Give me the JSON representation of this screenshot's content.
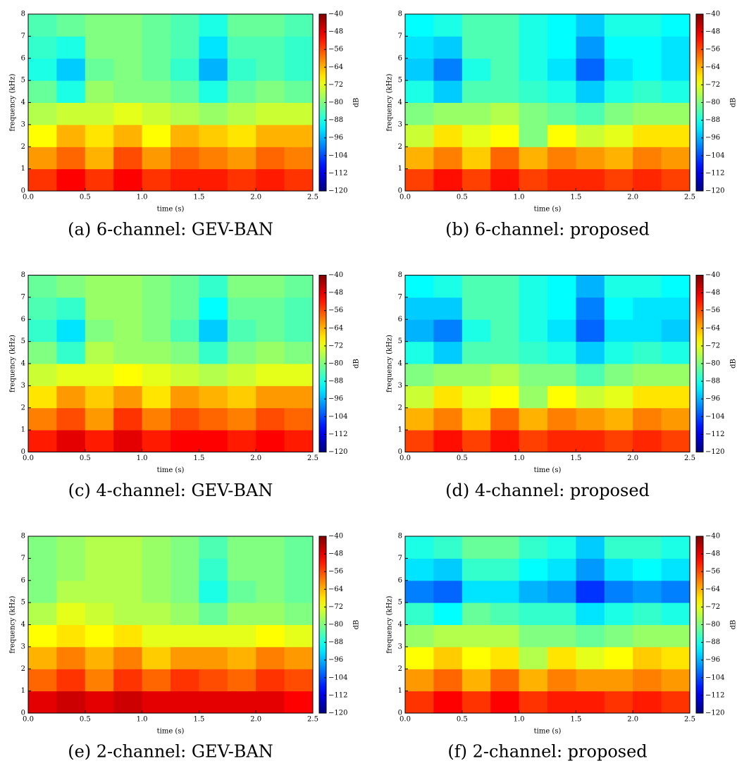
{
  "chart_data": [
    {
      "type": "heatmap",
      "title": "(a) 6-channel: GEV-BAN",
      "xlabel": "time (s)",
      "ylabel": "frequency (kHz)",
      "colorbar_label": "dB",
      "xlim": [
        0,
        2.5
      ],
      "ylim": [
        0,
        8
      ],
      "clim": [
        -120,
        -40
      ],
      "xticks": [
        {
          "value": 0,
          "label": "0.0"
        },
        {
          "value": 0.5,
          "label": "0.5"
        },
        {
          "value": 1,
          "label": "1.0"
        },
        {
          "value": 1.5,
          "label": "1.5"
        },
        {
          "value": 2,
          "label": "2.0"
        },
        {
          "value": 2.5,
          "label": "2.5"
        }
      ],
      "yticks": [
        0,
        1,
        2,
        3,
        4,
        5,
        6,
        7,
        8
      ],
      "cticks": [
        {
          "value": -40,
          "label": "−40"
        },
        {
          "value": -48,
          "label": "−48"
        },
        {
          "value": -56,
          "label": "−56"
        },
        {
          "value": -64,
          "label": "−64"
        },
        {
          "value": -72,
          "label": "−72"
        },
        {
          "value": -80,
          "label": "−80"
        },
        {
          "value": -88,
          "label": "−88"
        },
        {
          "value": -96,
          "label": "−96"
        },
        {
          "value": -104,
          "label": "−104"
        },
        {
          "value": -112,
          "label": "−112"
        },
        {
          "value": -120,
          "label": "−120"
        }
      ],
      "z": [
        [
          -54,
          -50,
          -54,
          -50,
          -54,
          -52,
          -52,
          -54,
          -52,
          -54
        ],
        [
          -62,
          -58,
          -64,
          -56,
          -62,
          -58,
          -60,
          -62,
          -58,
          -60
        ],
        [
          -70,
          -64,
          -68,
          -64,
          -70,
          -64,
          -66,
          -68,
          -64,
          -64
        ],
        [
          -76,
          -74,
          -74,
          -72,
          -74,
          -76,
          -78,
          -76,
          -74,
          -74
        ],
        [
          -82,
          -88,
          -78,
          -80,
          -80,
          -82,
          -88,
          -82,
          -80,
          -82
        ],
        [
          -88,
          -94,
          -82,
          -80,
          -82,
          -86,
          -96,
          -86,
          -84,
          -86
        ],
        [
          -86,
          -88,
          -80,
          -80,
          -82,
          -84,
          -92,
          -84,
          -84,
          -86
        ],
        [
          -84,
          -82,
          -80,
          -80,
          -82,
          -84,
          -88,
          -82,
          -82,
          -84
        ]
      ]
    },
    {
      "type": "heatmap",
      "title": "(b) 6-channel: proposed",
      "xlabel": "time (s)",
      "ylabel": "frequency (kHz)",
      "colorbar_label": "dB",
      "xlim": [
        0,
        2.5
      ],
      "ylim": [
        0,
        8
      ],
      "clim": [
        -120,
        -40
      ],
      "xticks": [
        {
          "value": 0,
          "label": "0.0"
        },
        {
          "value": 0.5,
          "label": "0.5"
        },
        {
          "value": 1,
          "label": "1.0"
        },
        {
          "value": 1.5,
          "label": "1.5"
        },
        {
          "value": 2,
          "label": "2.0"
        },
        {
          "value": 2.5,
          "label": "2.5"
        }
      ],
      "yticks": [
        0,
        1,
        2,
        3,
        4,
        5,
        6,
        7,
        8
      ],
      "cticks": [
        {
          "value": -40,
          "label": "−40"
        },
        {
          "value": -48,
          "label": "−48"
        },
        {
          "value": -56,
          "label": "−56"
        },
        {
          "value": -64,
          "label": "−64"
        },
        {
          "value": -72,
          "label": "−72"
        },
        {
          "value": -80,
          "label": "−80"
        },
        {
          "value": -88,
          "label": "−88"
        },
        {
          "value": -96,
          "label": "−96"
        },
        {
          "value": -104,
          "label": "−104"
        },
        {
          "value": -112,
          "label": "−112"
        },
        {
          "value": -120,
          "label": "−120"
        }
      ],
      "z": [
        [
          -55,
          -51,
          -55,
          -51,
          -55,
          -53,
          -53,
          -55,
          -53,
          -55
        ],
        [
          -64,
          -60,
          -66,
          -58,
          -64,
          -60,
          -62,
          -64,
          -60,
          -62
        ],
        [
          -74,
          -68,
          -72,
          -70,
          -80,
          -70,
          -74,
          -72,
          -68,
          -68
        ],
        [
          -80,
          -78,
          -78,
          -76,
          -80,
          -82,
          -84,
          -80,
          -78,
          -78
        ],
        [
          -88,
          -94,
          -84,
          -84,
          -86,
          -88,
          -94,
          -88,
          -86,
          -88
        ],
        [
          -94,
          -100,
          -88,
          -84,
          -88,
          -92,
          -102,
          -92,
          -90,
          -92
        ],
        [
          -92,
          -94,
          -84,
          -84,
          -88,
          -90,
          -98,
          -90,
          -90,
          -92
        ],
        [
          -90,
          -88,
          -84,
          -84,
          -88,
          -90,
          -94,
          -88,
          -88,
          -90
        ]
      ]
    },
    {
      "type": "heatmap",
      "title": "(c) 4-channel: GEV-BAN",
      "xlabel": "time (s)",
      "ylabel": "frequency (kHz)",
      "colorbar_label": "dB",
      "xlim": [
        0,
        2.5
      ],
      "ylim": [
        0,
        8
      ],
      "clim": [
        -120,
        -40
      ],
      "xticks": [
        {
          "value": 0,
          "label": "0.0"
        },
        {
          "value": 0.5,
          "label": "0.5"
        },
        {
          "value": 1,
          "label": "1.0"
        },
        {
          "value": 1.5,
          "label": "1.5"
        },
        {
          "value": 2,
          "label": "2.0"
        },
        {
          "value": 2.5,
          "label": "2.5"
        }
      ],
      "yticks": [
        0,
        1,
        2,
        3,
        4,
        5,
        6,
        7,
        8
      ],
      "cticks": [
        {
          "value": -40,
          "label": "−40"
        },
        {
          "value": -48,
          "label": "−48"
        },
        {
          "value": -56,
          "label": "−56"
        },
        {
          "value": -64,
          "label": "−64"
        },
        {
          "value": -72,
          "label": "−72"
        },
        {
          "value": -80,
          "label": "−80"
        },
        {
          "value": -88,
          "label": "−88"
        },
        {
          "value": -96,
          "label": "−96"
        },
        {
          "value": -104,
          "label": "−104"
        },
        {
          "value": -112,
          "label": "−112"
        },
        {
          "value": -120,
          "label": "−120"
        }
      ],
      "z": [
        [
          -52,
          -48,
          -52,
          -48,
          -52,
          -50,
          -50,
          -52,
          -50,
          -52
        ],
        [
          -60,
          -56,
          -62,
          -54,
          -60,
          -56,
          -58,
          -60,
          -56,
          -58
        ],
        [
          -68,
          -62,
          -66,
          -62,
          -68,
          -62,
          -64,
          -66,
          -62,
          -62
        ],
        [
          -74,
          -72,
          -72,
          -70,
          -72,
          -74,
          -76,
          -74,
          -72,
          -72
        ],
        [
          -80,
          -86,
          -76,
          -78,
          -78,
          -80,
          -86,
          -80,
          -78,
          -80
        ],
        [
          -86,
          -92,
          -80,
          -78,
          -80,
          -84,
          -94,
          -84,
          -82,
          -84
        ],
        [
          -84,
          -86,
          -78,
          -78,
          -80,
          -82,
          -90,
          -82,
          -82,
          -84
        ],
        [
          -82,
          -80,
          -78,
          -78,
          -80,
          -82,
          -86,
          -80,
          -80,
          -82
        ]
      ]
    },
    {
      "type": "heatmap",
      "title": "(d) 4-channel: proposed",
      "xlabel": "time (s)",
      "ylabel": "frequency (kHz)",
      "colorbar_label": "dB",
      "xlim": [
        0,
        2.5
      ],
      "ylim": [
        0,
        8
      ],
      "clim": [
        -120,
        -40
      ],
      "xticks": [
        {
          "value": 0,
          "label": "0.0"
        },
        {
          "value": 0.5,
          "label": "0.5"
        },
        {
          "value": 1,
          "label": "1.0"
        },
        {
          "value": 1.5,
          "label": "1.5"
        },
        {
          "value": 2,
          "label": "2.0"
        },
        {
          "value": 2.5,
          "label": "2.5"
        }
      ],
      "yticks": [
        0,
        1,
        2,
        3,
        4,
        5,
        6,
        7,
        8
      ],
      "cticks": [
        {
          "value": -40,
          "label": "−40"
        },
        {
          "value": -48,
          "label": "−48"
        },
        {
          "value": -56,
          "label": "−56"
        },
        {
          "value": -64,
          "label": "−64"
        },
        {
          "value": -72,
          "label": "−72"
        },
        {
          "value": -80,
          "label": "−80"
        },
        {
          "value": -88,
          "label": "−88"
        },
        {
          "value": -96,
          "label": "−96"
        },
        {
          "value": -104,
          "label": "−104"
        },
        {
          "value": -112,
          "label": "−112"
        },
        {
          "value": -120,
          "label": "−120"
        }
      ],
      "z": [
        [
          -55,
          -51,
          -55,
          -51,
          -55,
          -53,
          -53,
          -55,
          -53,
          -55
        ],
        [
          -64,
          -60,
          -66,
          -58,
          -64,
          -60,
          -62,
          -64,
          -60,
          -62
        ],
        [
          -74,
          -68,
          -72,
          -70,
          -78,
          -70,
          -74,
          -72,
          -68,
          -68
        ],
        [
          -80,
          -78,
          -78,
          -76,
          -80,
          -80,
          -84,
          -80,
          -78,
          -78
        ],
        [
          -88,
          -94,
          -84,
          -84,
          -86,
          -88,
          -94,
          -88,
          -86,
          -88
        ],
        [
          -96,
          -100,
          -88,
          -84,
          -88,
          -92,
          -102,
          -92,
          -92,
          -94
        ],
        [
          -94,
          -94,
          -84,
          -84,
          -88,
          -90,
          -100,
          -90,
          -92,
          -92
        ],
        [
          -90,
          -88,
          -84,
          -84,
          -88,
          -90,
          -96,
          -88,
          -88,
          -90
        ]
      ]
    },
    {
      "type": "heatmap",
      "title": "(e) 2-channel: GEV-BAN",
      "xlabel": "time (s)",
      "ylabel": "frequency (kHz)",
      "colorbar_label": "dB",
      "xlim": [
        0,
        2.5
      ],
      "ylim": [
        0,
        8
      ],
      "clim": [
        -120,
        -40
      ],
      "xticks": [
        {
          "value": 0,
          "label": "0.0"
        },
        {
          "value": 0.5,
          "label": "0.5"
        },
        {
          "value": 1,
          "label": "1.0"
        },
        {
          "value": 1.5,
          "label": "1.5"
        },
        {
          "value": 2,
          "label": "2.0"
        },
        {
          "value": 2.5,
          "label": "2.5"
        }
      ],
      "yticks": [
        0,
        1,
        2,
        3,
        4,
        5,
        6,
        7,
        8
      ],
      "cticks": [
        {
          "value": -40,
          "label": "−40"
        },
        {
          "value": -48,
          "label": "−48"
        },
        {
          "value": -56,
          "label": "−56"
        },
        {
          "value": -64,
          "label": "−64"
        },
        {
          "value": -72,
          "label": "−72"
        },
        {
          "value": -80,
          "label": "−80"
        },
        {
          "value": -88,
          "label": "−88"
        },
        {
          "value": -96,
          "label": "−96"
        },
        {
          "value": -104,
          "label": "−104"
        },
        {
          "value": -112,
          "label": "−112"
        },
        {
          "value": -120,
          "label": "−120"
        }
      ],
      "z": [
        [
          -48,
          -46,
          -48,
          -46,
          -48,
          -48,
          -48,
          -48,
          -48,
          -50
        ],
        [
          -58,
          -54,
          -60,
          -54,
          -58,
          -54,
          -56,
          -58,
          -54,
          -56
        ],
        [
          -64,
          -60,
          -64,
          -60,
          -66,
          -62,
          -62,
          -64,
          -60,
          -62
        ],
        [
          -70,
          -68,
          -70,
          -68,
          -72,
          -72,
          -72,
          -72,
          -70,
          -72
        ],
        [
          -76,
          -72,
          -74,
          -76,
          -76,
          -78,
          -82,
          -78,
          -78,
          -80
        ],
        [
          -80,
          -76,
          -76,
          -76,
          -78,
          -80,
          -88,
          -82,
          -80,
          -82
        ],
        [
          -80,
          -78,
          -76,
          -76,
          -78,
          -80,
          -86,
          -80,
          -80,
          -82
        ],
        [
          -80,
          -78,
          -76,
          -76,
          -78,
          -80,
          -84,
          -80,
          -80,
          -82
        ]
      ]
    },
    {
      "type": "heatmap",
      "title": "(f) 2-channel: proposed",
      "xlabel": "time (s)",
      "ylabel": "frequency (kHz)",
      "colorbar_label": "dB",
      "xlim": [
        0,
        2.5
      ],
      "ylim": [
        0,
        8
      ],
      "clim": [
        -120,
        -40
      ],
      "xticks": [
        {
          "value": 0,
          "label": "0.0"
        },
        {
          "value": 0.5,
          "label": "0.5"
        },
        {
          "value": 1,
          "label": "1.0"
        },
        {
          "value": 1.5,
          "label": "1.5"
        },
        {
          "value": 2,
          "label": "2.0"
        },
        {
          "value": 2.5,
          "label": "2.5"
        }
      ],
      "yticks": [
        0,
        1,
        2,
        3,
        4,
        5,
        6,
        7,
        8
      ],
      "cticks": [
        {
          "value": -40,
          "label": "−40"
        },
        {
          "value": -48,
          "label": "−48"
        },
        {
          "value": -56,
          "label": "−56"
        },
        {
          "value": -64,
          "label": "−64"
        },
        {
          "value": -72,
          "label": "−72"
        },
        {
          "value": -80,
          "label": "−80"
        },
        {
          "value": -88,
          "label": "−88"
        },
        {
          "value": -96,
          "label": "−96"
        },
        {
          "value": -104,
          "label": "−104"
        },
        {
          "value": -112,
          "label": "−112"
        },
        {
          "value": -120,
          "label": "−120"
        }
      ],
      "z": [
        [
          -54,
          -50,
          -54,
          -50,
          -54,
          -52,
          -52,
          -54,
          -52,
          -54
        ],
        [
          -62,
          -58,
          -64,
          -58,
          -64,
          -60,
          -62,
          -62,
          -60,
          -62
        ],
        [
          -70,
          -66,
          -70,
          -68,
          -76,
          -68,
          -72,
          -70,
          -66,
          -68
        ],
        [
          -78,
          -76,
          -76,
          -76,
          -80,
          -80,
          -82,
          -80,
          -78,
          -78
        ],
        [
          -86,
          -90,
          -82,
          -84,
          -86,
          -86,
          -92,
          -88,
          -86,
          -88
        ],
        [
          -100,
          -102,
          -92,
          -92,
          -96,
          -98,
          -106,
          -100,
          -98,
          -100
        ],
        [
          -92,
          -94,
          -86,
          -86,
          -90,
          -92,
          -98,
          -92,
          -90,
          -92
        ],
        [
          -88,
          -86,
          -82,
          -82,
          -86,
          -88,
          -94,
          -86,
          -86,
          -88
        ]
      ]
    }
  ]
}
